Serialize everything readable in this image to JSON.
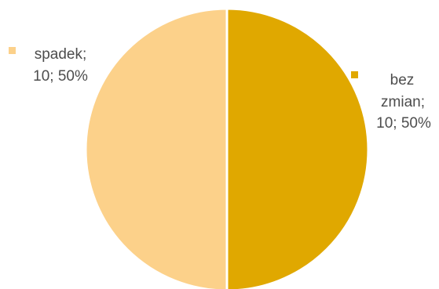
{
  "chart_data": {
    "type": "pie",
    "title": "",
    "slices": [
      {
        "name": "bez zmian",
        "value": 10,
        "percent": "50%",
        "color": "#e0a800",
        "label_lines": [
          "bez",
          "zmian;",
          "10; 50%"
        ]
      },
      {
        "name": "spadek",
        "value": 10,
        "percent": "50%",
        "color": "#fcd18a",
        "label_lines": [
          "spadek;",
          "10; 50%"
        ]
      }
    ],
    "legend": "none",
    "data_labels": "outside with color key"
  }
}
